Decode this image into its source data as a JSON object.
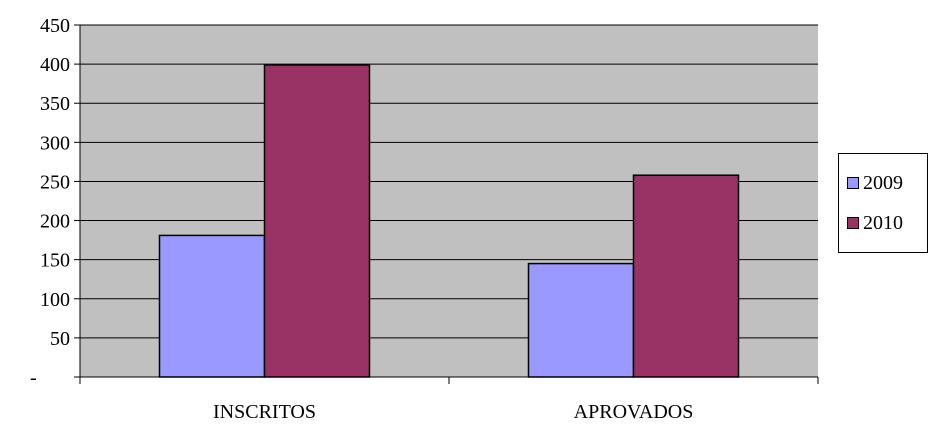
{
  "chart_data": {
    "type": "bar",
    "categories": [
      "INSCRITOS",
      "APROVADOS"
    ],
    "series": [
      {
        "name": "2009",
        "values": [
          181,
          145
        ],
        "color": "#9999FF"
      },
      {
        "name": "2010",
        "values": [
          399,
          258
        ],
        "color": "#993366"
      }
    ],
    "title": "",
    "xlabel": "",
    "ylabel": "",
    "ylim": [
      0,
      450
    ],
    "yticks": [
      {
        "value": 0,
        "label": "-"
      },
      {
        "value": 50,
        "label": "50"
      },
      {
        "value": 100,
        "label": "100"
      },
      {
        "value": 150,
        "label": "150"
      },
      {
        "value": 200,
        "label": "200"
      },
      {
        "value": 250,
        "label": "250"
      },
      {
        "value": 300,
        "label": "300"
      },
      {
        "value": 350,
        "label": "350"
      },
      {
        "value": 400,
        "label": "400"
      },
      {
        "value": 450,
        "label": "450"
      }
    ],
    "grid": true,
    "plot_background": "#C0C0C0",
    "legend_position": "right"
  }
}
